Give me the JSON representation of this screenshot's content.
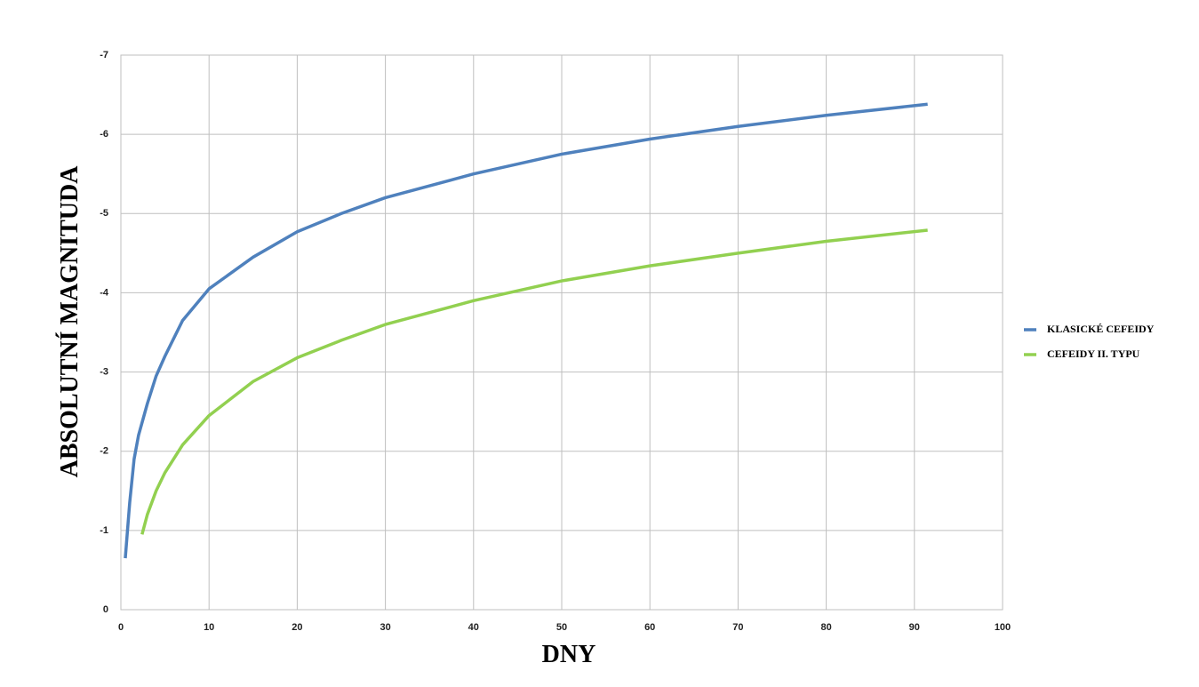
{
  "chart_data": {
    "type": "line",
    "xlabel": "DNY",
    "ylabel": "ABSOLUTNÍ MAGNITUDA",
    "xlim": [
      0,
      100
    ],
    "xticks": [
      0,
      10,
      20,
      30,
      40,
      50,
      60,
      70,
      80,
      90,
      100
    ],
    "ylim": [
      0,
      -7
    ],
    "yticks": [
      0,
      -1,
      -2,
      -3,
      -4,
      -5,
      -6,
      -7
    ],
    "grid": true,
    "legend": "right",
    "series": [
      {
        "name": "KLASICKÉ CEFEIDY",
        "color": "#4f81bd",
        "x": [
          0.5,
          1,
          1.5,
          2,
          3,
          4,
          5,
          7,
          10,
          15,
          20,
          25,
          30,
          40,
          50,
          60,
          70,
          80,
          91.5
        ],
        "values": [
          -0.65,
          -1.35,
          -1.9,
          -2.2,
          -2.6,
          -2.95,
          -3.2,
          -3.65,
          -4.05,
          -4.45,
          -4.77,
          -5.0,
          -5.2,
          -5.5,
          -5.75,
          -5.94,
          -6.1,
          -6.24,
          -6.38
        ]
      },
      {
        "name": "CEFEIDY II. TYPU",
        "color": "#92d050",
        "x": [
          2.4,
          3,
          4,
          5,
          7,
          10,
          15,
          20,
          25,
          30,
          40,
          50,
          60,
          70,
          80,
          91.5
        ],
        "values": [
          -0.95,
          -1.2,
          -1.5,
          -1.73,
          -2.08,
          -2.45,
          -2.88,
          -3.18,
          -3.4,
          -3.6,
          -3.9,
          -4.15,
          -4.34,
          -4.5,
          -4.65,
          -4.79
        ]
      }
    ]
  }
}
